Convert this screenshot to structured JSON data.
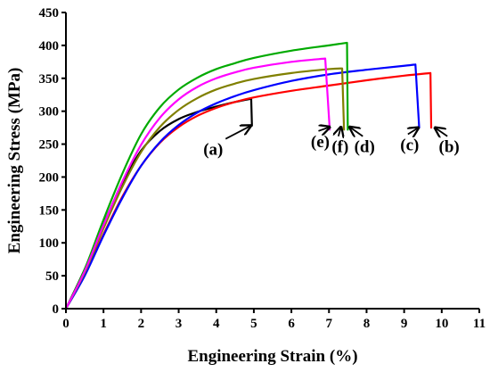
{
  "chart_data": {
    "type": "line",
    "xlabel": "Engineering Strain (%)",
    "ylabel": "Engineering Stress (MPa)",
    "xlim": [
      0,
      11
    ],
    "ylim": [
      0,
      450
    ],
    "xticks": [
      0,
      1,
      2,
      3,
      4,
      5,
      6,
      7,
      8,
      9,
      10,
      11
    ],
    "yticks": [
      0,
      50,
      100,
      150,
      200,
      250,
      300,
      350,
      400,
      450
    ],
    "grid": false,
    "legend": "none",
    "series": [
      {
        "color": "#000000",
        "points": [
          [
            0,
            0
          ],
          [
            0.5,
            60
          ],
          [
            1,
            128
          ],
          [
            1.5,
            190
          ],
          [
            2,
            240
          ],
          [
            2.5,
            270
          ],
          [
            3,
            288
          ],
          [
            3.5,
            299
          ],
          [
            4,
            307
          ],
          [
            4.5,
            314
          ],
          [
            4.93,
            319
          ],
          [
            4.95,
            278
          ]
        ]
      },
      {
        "color": "#ff0000",
        "points": [
          [
            0,
            0
          ],
          [
            0.5,
            52
          ],
          [
            1,
            113
          ],
          [
            1.5,
            170
          ],
          [
            2,
            217
          ],
          [
            2.5,
            252
          ],
          [
            3,
            276
          ],
          [
            3.5,
            293
          ],
          [
            4,
            305
          ],
          [
            4.5,
            314
          ],
          [
            5,
            321
          ],
          [
            6,
            331
          ],
          [
            7,
            339
          ],
          [
            8,
            347
          ],
          [
            9,
            354
          ],
          [
            9.7,
            358
          ],
          [
            9.72,
            275
          ]
        ]
      },
      {
        "color": "#0000ff",
        "points": [
          [
            0,
            0
          ],
          [
            0.5,
            50
          ],
          [
            1,
            111
          ],
          [
            1.5,
            168
          ],
          [
            2,
            217
          ],
          [
            2.5,
            253
          ],
          [
            3,
            279
          ],
          [
            3.5,
            298
          ],
          [
            4,
            312
          ],
          [
            4.5,
            323
          ],
          [
            5,
            332
          ],
          [
            6,
            346
          ],
          [
            7,
            356
          ],
          [
            8,
            363
          ],
          [
            9,
            369
          ],
          [
            9.3,
            371
          ],
          [
            9.4,
            275
          ]
        ]
      },
      {
        "color": "#00aa00",
        "points": [
          [
            0,
            0
          ],
          [
            0.5,
            60
          ],
          [
            1,
            135
          ],
          [
            1.5,
            205
          ],
          [
            2,
            265
          ],
          [
            2.5,
            306
          ],
          [
            3,
            333
          ],
          [
            3.5,
            351
          ],
          [
            4,
            364
          ],
          [
            4.5,
            373
          ],
          [
            5,
            381
          ],
          [
            6,
            392
          ],
          [
            7,
            400
          ],
          [
            7.48,
            404
          ],
          [
            7.5,
            272
          ]
        ]
      },
      {
        "color": "#808000",
        "points": [
          [
            0,
            0
          ],
          [
            0.5,
            55
          ],
          [
            1,
            122
          ],
          [
            1.5,
            185
          ],
          [
            2,
            238
          ],
          [
            2.5,
            276
          ],
          [
            3,
            302
          ],
          [
            3.5,
            320
          ],
          [
            4,
            333
          ],
          [
            4.5,
            342
          ],
          [
            5,
            349
          ],
          [
            6,
            358
          ],
          [
            7,
            364
          ],
          [
            7.35,
            365
          ],
          [
            7.4,
            272
          ]
        ]
      },
      {
        "color": "#ff00ff",
        "points": [
          [
            0,
            0
          ],
          [
            0.5,
            57
          ],
          [
            1,
            127
          ],
          [
            1.5,
            193
          ],
          [
            2,
            249
          ],
          [
            2.5,
            290
          ],
          [
            3,
            318
          ],
          [
            3.5,
            337
          ],
          [
            4,
            350
          ],
          [
            4.5,
            359
          ],
          [
            5,
            366
          ],
          [
            6,
            375
          ],
          [
            6.9,
            380
          ],
          [
            7.02,
            272
          ]
        ]
      }
    ],
    "annotations": [
      {
        "label": "(a)",
        "tail": [
          4.25,
          258
        ],
        "head": [
          4.92,
          278
        ]
      },
      {
        "label": "(e)",
        "tail": [
          6.72,
          270
        ],
        "head": [
          7.02,
          276
        ]
      },
      {
        "label": "(f)",
        "tail": [
          7.25,
          262
        ],
        "head": [
          7.32,
          276
        ]
      },
      {
        "label": "(d)",
        "tail": [
          7.9,
          262
        ],
        "head": [
          7.55,
          276
        ]
      },
      {
        "label": "(c)",
        "tail": [
          9.1,
          265
        ],
        "head": [
          9.38,
          275
        ]
      },
      {
        "label": "(b)",
        "tail": [
          10.15,
          262
        ],
        "head": [
          9.82,
          275
        ]
      }
    ]
  }
}
